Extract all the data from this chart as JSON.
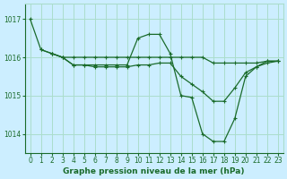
{
  "title": "Graphe pression niveau de la mer (hPa)",
  "bg_color": "#cceeff",
  "grid_color": "#aaddcc",
  "line_color": "#1a6b2a",
  "xlim": [
    -0.5,
    23.5
  ],
  "ylim": [
    1013.5,
    1017.4
  ],
  "yticks": [
    1014,
    1015,
    1016,
    1017
  ],
  "xticks": [
    0,
    1,
    2,
    3,
    4,
    5,
    6,
    7,
    8,
    9,
    10,
    11,
    12,
    13,
    14,
    15,
    16,
    17,
    18,
    19,
    20,
    21,
    22,
    23
  ],
  "series": [
    {
      "x": [
        0,
        1,
        2,
        3,
        4,
        5,
        6,
        7,
        8,
        9,
        10,
        11,
        12,
        13,
        14,
        15,
        16,
        17,
        18,
        19,
        20,
        21,
        22,
        23
      ],
      "y": [
        1017.0,
        1016.2,
        1016.1,
        1016.0,
        1015.8,
        1015.8,
        1015.8,
        1015.8,
        1015.8,
        1015.8,
        1016.5,
        1016.6,
        1016.6,
        1016.1,
        1015.0,
        1014.95,
        1014.0,
        1013.8,
        1013.8,
        1014.4,
        1015.5,
        1015.75,
        1015.9,
        1015.9
      ]
    },
    {
      "x": [
        1,
        2,
        3,
        4,
        5,
        6,
        7,
        8,
        9,
        10,
        11,
        12,
        13,
        14,
        15,
        16,
        17,
        18,
        19,
        20,
        21,
        22,
        23
      ],
      "y": [
        1016.2,
        1016.1,
        1016.0,
        1016.0,
        1016.0,
        1016.0,
        1016.0,
        1016.0,
        1016.0,
        1016.0,
        1016.0,
        1016.0,
        1016.0,
        1016.0,
        1016.0,
        1016.0,
        1015.85,
        1015.85,
        1015.85,
        1015.85,
        1015.85,
        1015.9,
        1015.9
      ]
    },
    {
      "x": [
        2,
        3,
        4,
        5,
        6,
        7,
        8,
        9,
        10,
        11,
        12,
        13,
        14,
        15,
        16,
        17,
        18,
        19,
        20,
        21,
        22,
        23
      ],
      "y": [
        1016.1,
        1016.0,
        1015.8,
        1015.8,
        1015.75,
        1015.75,
        1015.75,
        1015.75,
        1015.8,
        1015.8,
        1015.85,
        1015.85,
        1015.5,
        1015.3,
        1015.1,
        1014.85,
        1014.85,
        1015.2,
        1015.6,
        1015.75,
        1015.85,
        1015.9
      ]
    }
  ]
}
